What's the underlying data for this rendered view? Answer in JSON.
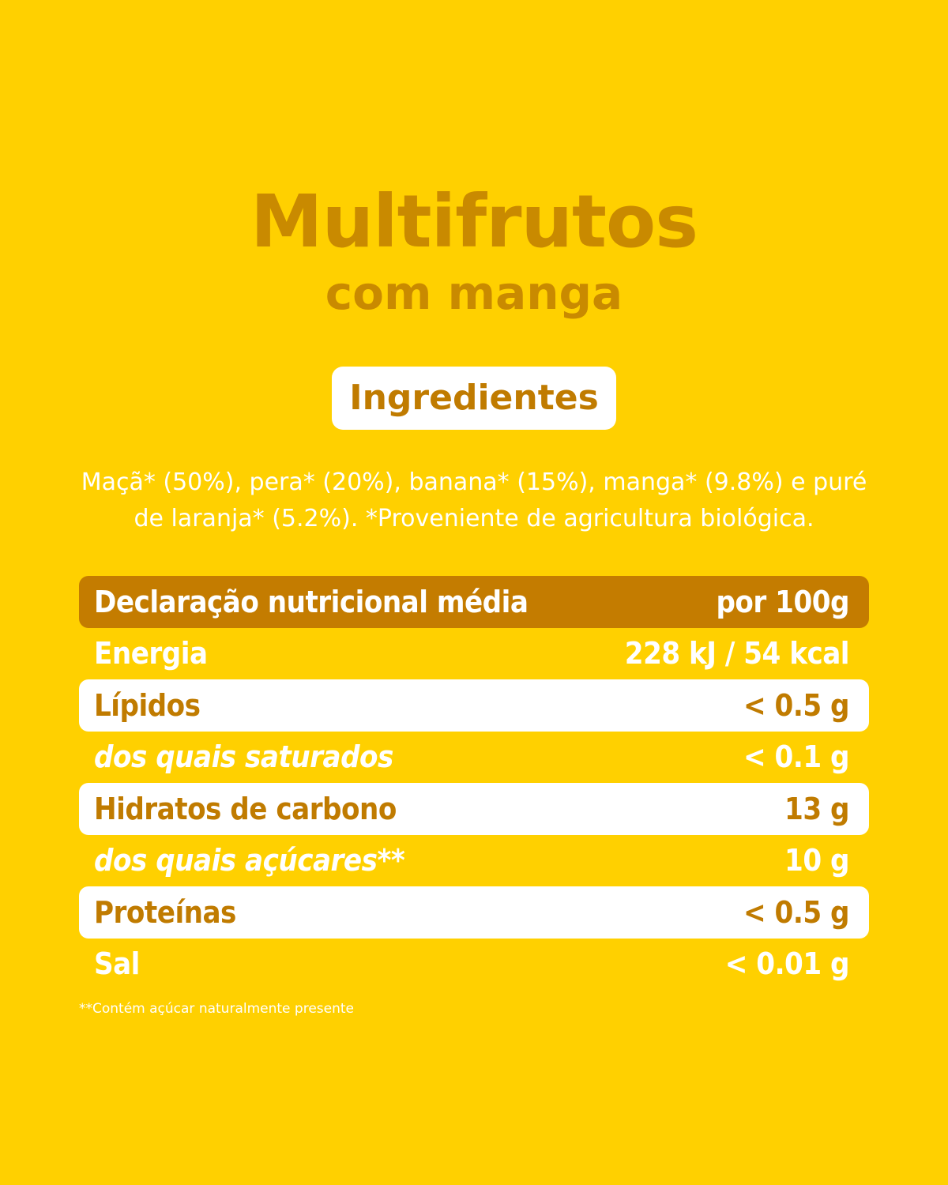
{
  "title": "Multifrutos",
  "subtitle": "com manga",
  "ingredients_label": "Ingredientes",
  "ingredients_line1": "Maçã* (50%), pera* (20%), banana* (15%), manga* (9.8%) e puré",
  "ingredients_line2": "de laranja* (5.2%). *Proveniente de agricultura biológica.",
  "nutrition": {
    "header_label": "Declaração nutricional média",
    "header_value": "por 100g",
    "rows": [
      {
        "label": "Energia",
        "value": "228 kJ / 54 kcal"
      },
      {
        "label": "Lípidos",
        "value": "< 0.5 g"
      },
      {
        "label": "dos quais saturados",
        "value": "< 0.1 g"
      },
      {
        "label": "Hidratos de carbono",
        "value": "13 g"
      },
      {
        "label": "dos quais açúcares**",
        "value": "10 g"
      },
      {
        "label": "Proteínas",
        "value": "< 0.5 g"
      },
      {
        "label": "Sal",
        "value": "< 0.01 g"
      }
    ]
  },
  "footnote": "**Contém açúcar naturalmente presente",
  "colors": {
    "background": "#FFD000",
    "accent": "#C98A00",
    "header_bar": "#C47C00",
    "white": "#FFFFFF"
  }
}
